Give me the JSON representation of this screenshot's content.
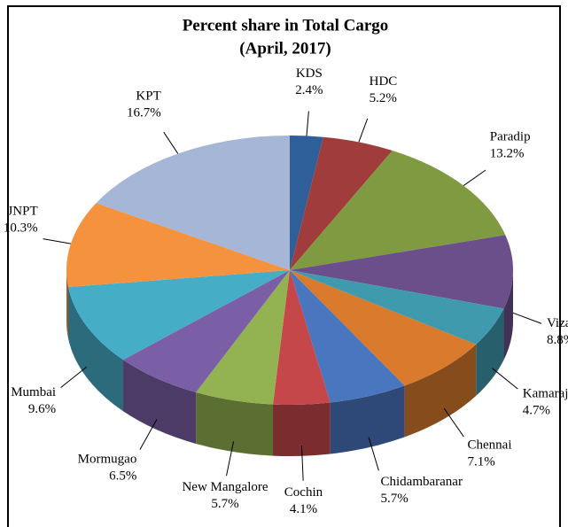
{
  "chart_data": {
    "type": "pie",
    "title": "Percent share in Total Cargo",
    "subtitle": "(April, 2017)",
    "categories": [
      "KDS",
      "HDC",
      "Paradip",
      "Vizag",
      "Kamarajar",
      "Chennai",
      "Chidambaranar",
      "Cochin",
      "New Mangalore",
      "Mormugao",
      "Mumbai",
      "JNPT",
      "KPT"
    ],
    "values": [
      2.4,
      5.2,
      13.2,
      8.8,
      4.7,
      7.1,
      5.7,
      4.1,
      5.7,
      6.5,
      9.6,
      10.3,
      16.7
    ],
    "value_labels": [
      "2.4%",
      "5.2%",
      "13.2%",
      "8.8%",
      "4.7%",
      "7.1%",
      "5.7%",
      "4.1%",
      "5.7%",
      "6.5%",
      "9.6%",
      "10.3%",
      "16.7%"
    ],
    "colors": [
      "#2e5f98",
      "#a03c3c",
      "#7f9a41",
      "#6a4f8a",
      "#3f9aae",
      "#d97a2c",
      "#4a76c0",
      "#c6474a",
      "#93b352",
      "#7b5fa6",
      "#46adc7",
      "#f5923e",
      "#a5b6d6"
    ]
  }
}
